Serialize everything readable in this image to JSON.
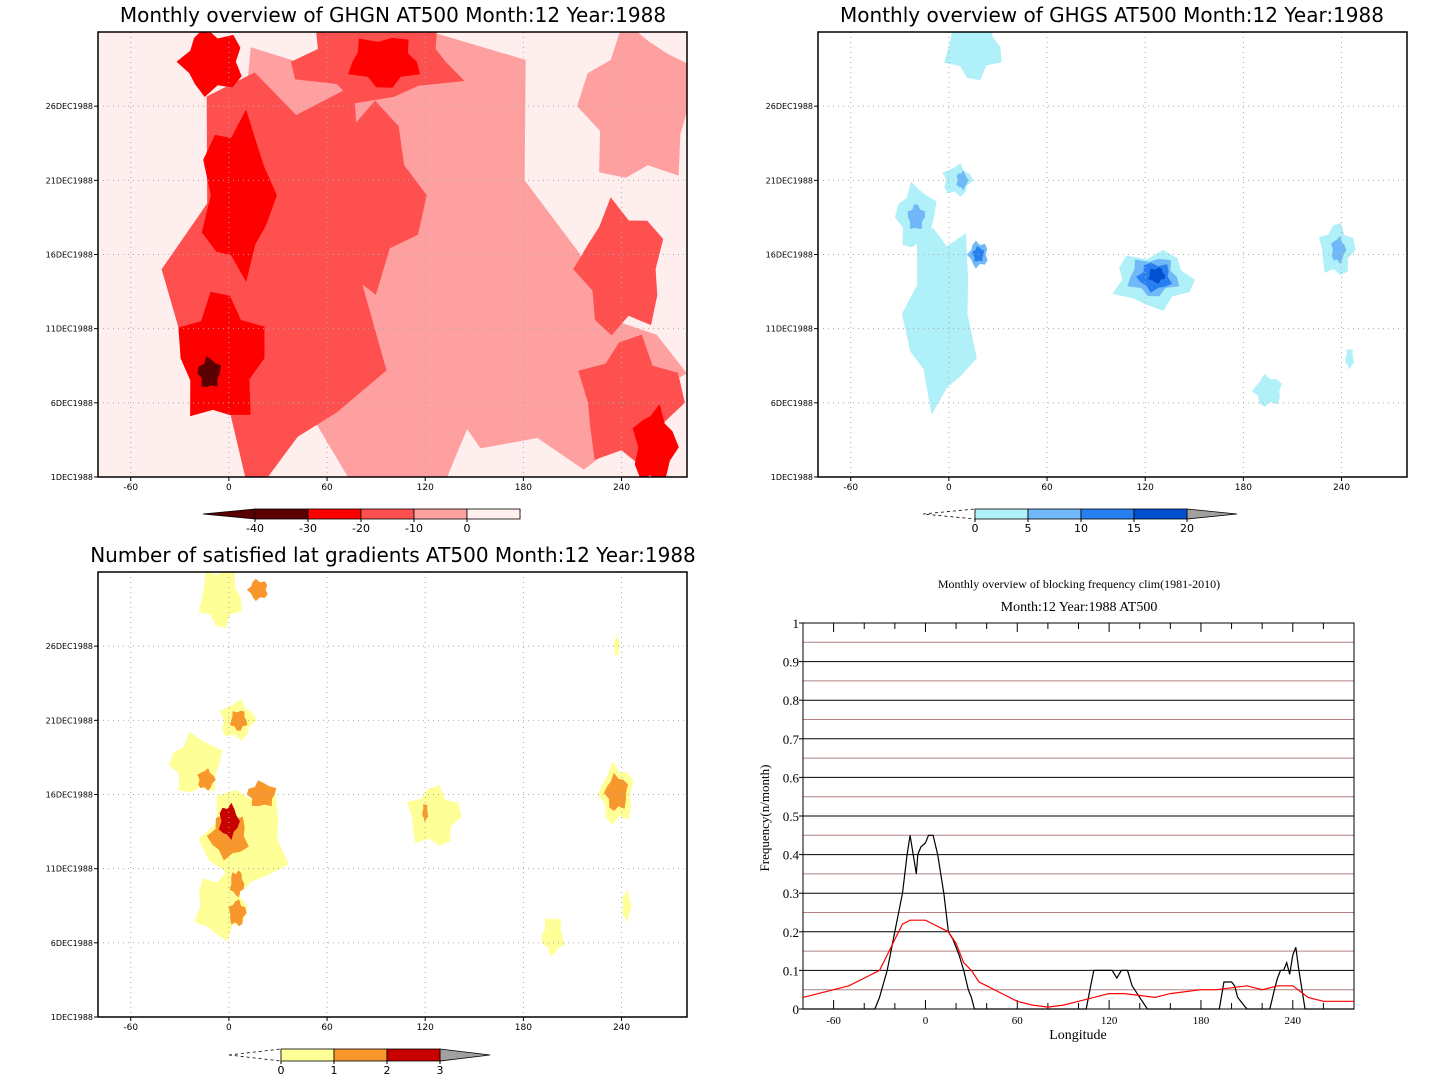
{
  "chart_data": [
    {
      "type": "heatmap",
      "title": "Monthly overview of GHGN AT500 Month:12 Year:1988",
      "x_ticks": [
        "-60",
        "0",
        "60",
        "120",
        "180",
        "240"
      ],
      "y_ticks": [
        "1DEC1988",
        "6DEC1988",
        "11DEC1988",
        "16DEC1988",
        "21DEC1988",
        "26DEC1988"
      ],
      "xlim": [
        -80,
        280
      ],
      "ylim": [
        1,
        31
      ],
      "grid": true,
      "colorbar": {
        "labels": [
          "-40",
          "-30",
          "-20",
          "-10",
          "0"
        ],
        "colors": [
          "#5a0000",
          "#ff0000",
          "#ff5050",
          "#ffa0a0",
          "#ffeeee"
        ],
        "extend_low_color": "#5a0000",
        "extend_high_color": "#ffffff"
      },
      "regions": [
        {
          "level": -10,
          "color": "#ffa0a0",
          "x": 100,
          "y": 16,
          "rx": 140,
          "ry": 18
        },
        {
          "level": -10,
          "color": "#ffa0a0",
          "x": 200,
          "y": 8,
          "rx": 80,
          "ry": 7
        },
        {
          "level": -10,
          "color": "#ffa0a0",
          "x": 250,
          "y": 26,
          "rx": 40,
          "ry": 6
        },
        {
          "level": -20,
          "color": "#ff5050",
          "x": 30,
          "y": 15,
          "rx": 75,
          "ry": 16
        },
        {
          "level": -20,
          "color": "#ff5050",
          "x": 80,
          "y": 20,
          "rx": 45,
          "ry": 7
        },
        {
          "level": -20,
          "color": "#ff5050",
          "x": 245,
          "y": 6,
          "rx": 35,
          "ry": 5
        },
        {
          "level": -20,
          "color": "#ff5050",
          "x": 240,
          "y": 15,
          "rx": 30,
          "ry": 5
        },
        {
          "level": -20,
          "color": "#ff5050",
          "x": 90,
          "y": 29,
          "rx": 60,
          "ry": 3
        },
        {
          "level": -30,
          "color": "#ff0000",
          "x": 5,
          "y": 20,
          "rx": 25,
          "ry": 6
        },
        {
          "level": -30,
          "color": "#ff0000",
          "x": -5,
          "y": 9,
          "rx": 30,
          "ry": 5
        },
        {
          "level": -30,
          "color": "#ff0000",
          "x": -10,
          "y": 29,
          "rx": 22,
          "ry": 2.5
        },
        {
          "level": -30,
          "color": "#ff0000",
          "x": 95,
          "y": 29,
          "rx": 25,
          "ry": 2
        },
        {
          "level": -30,
          "color": "#ff0000",
          "x": 260,
          "y": 3,
          "rx": 15,
          "ry": 3
        },
        {
          "level": -40,
          "color": "#5a0000",
          "x": -12,
          "y": 8,
          "rx": 8,
          "ry": 1.2
        }
      ]
    },
    {
      "type": "heatmap",
      "title": "Monthly overview of GHGS AT500 Month:12 Year:1988",
      "x_ticks": [
        "-60",
        "0",
        "60",
        "120",
        "180",
        "240"
      ],
      "y_ticks": [
        "1DEC1988",
        "6DEC1988",
        "11DEC1988",
        "16DEC1988",
        "21DEC1988",
        "26DEC1988"
      ],
      "xlim": [
        -80,
        280
      ],
      "ylim": [
        1,
        31
      ],
      "grid": true,
      "colorbar": {
        "labels": [
          "0",
          "5",
          "10",
          "15",
          "20"
        ],
        "colors": [
          "#b0f0f8",
          "#70b8f8",
          "#2880f0",
          "#0050d0"
        ],
        "extend_low_color": "#ffffff",
        "extend_high_color": "#a0a0a0"
      },
      "regions": [
        {
          "level": 0,
          "color": "#b0f0f8",
          "x": 15,
          "y": 30,
          "rx": 20,
          "ry": 2.5
        },
        {
          "level": 0,
          "color": "#b0f0f8",
          "x": 5,
          "y": 21,
          "rx": 10,
          "ry": 1.2
        },
        {
          "level": 0,
          "color": "#b0f0f8",
          "x": -20,
          "y": 18.5,
          "rx": 14,
          "ry": 2.5
        },
        {
          "level": 0,
          "color": "#b0f0f8",
          "x": -5,
          "y": 12,
          "rx": 25,
          "ry": 7
        },
        {
          "level": 0,
          "color": "#b0f0f8",
          "x": 125,
          "y": 14.3,
          "rx": 28,
          "ry": 2.2
        },
        {
          "level": 0,
          "color": "#b0f0f8",
          "x": 237,
          "y": 16.3,
          "rx": 12,
          "ry": 2
        },
        {
          "level": 0,
          "color": "#b0f0f8",
          "x": 195,
          "y": 6.8,
          "rx": 10,
          "ry": 1.2
        },
        {
          "level": 0,
          "color": "#b0f0f8",
          "x": 245,
          "y": 9,
          "rx": 3,
          "ry": 0.8
        },
        {
          "level": 5,
          "color": "#70b8f8",
          "x": 8,
          "y": 21,
          "rx": 4,
          "ry": 0.7
        },
        {
          "level": 5,
          "color": "#70b8f8",
          "x": -20,
          "y": 18.5,
          "rx": 6,
          "ry": 1
        },
        {
          "level": 5,
          "color": "#70b8f8",
          "x": 18,
          "y": 16,
          "rx": 7,
          "ry": 1
        },
        {
          "level": 5,
          "color": "#70b8f8",
          "x": 125,
          "y": 14.5,
          "rx": 18,
          "ry": 1.5
        },
        {
          "level": 5,
          "color": "#70b8f8",
          "x": 238,
          "y": 16.3,
          "rx": 5,
          "ry": 1
        },
        {
          "level": 10,
          "color": "#2880f0",
          "x": 18,
          "y": 16,
          "rx": 4,
          "ry": 0.6
        },
        {
          "level": 10,
          "color": "#2880f0",
          "x": 126,
          "y": 14.5,
          "rx": 12,
          "ry": 1.1
        },
        {
          "level": 15,
          "color": "#0050d0",
          "x": 127,
          "y": 14.6,
          "rx": 6,
          "ry": 0.6
        }
      ]
    },
    {
      "type": "heatmap",
      "title": "Number of satisfied lat gradients AT500 Month:12 Year:1988",
      "x_ticks": [
        "-60",
        "0",
        "60",
        "120",
        "180",
        "240"
      ],
      "y_ticks": [
        "1DEC1988",
        "6DEC1988",
        "11DEC1988",
        "16DEC1988",
        "21DEC1988",
        "26DEC1988"
      ],
      "xlim": [
        -80,
        280
      ],
      "ylim": [
        1,
        31
      ],
      "grid": true,
      "colorbar": {
        "labels": [
          "0",
          "1",
          "2",
          "3"
        ],
        "colors": [
          "#ffff98",
          "#f8982c",
          "#c80000"
        ],
        "extend_low_color": "#ffffff",
        "extend_high_color": "#a0a0a0"
      },
      "regions": [
        {
          "level": 0,
          "color": "#ffff98",
          "x": -5,
          "y": 29.3,
          "rx": 15,
          "ry": 2.3
        },
        {
          "level": 0,
          "color": "#ffff98",
          "x": 5,
          "y": 21,
          "rx": 12,
          "ry": 1.5
        },
        {
          "level": 0,
          "color": "#ffff98",
          "x": -20,
          "y": 18,
          "rx": 18,
          "ry": 2.3
        },
        {
          "level": 0,
          "color": "#ffff98",
          "x": 10,
          "y": 13,
          "rx": 30,
          "ry": 4
        },
        {
          "level": 0,
          "color": "#ffff98",
          "x": -5,
          "y": 8.5,
          "rx": 18,
          "ry": 2.5
        },
        {
          "level": 0,
          "color": "#ffff98",
          "x": 125,
          "y": 14.5,
          "rx": 18,
          "ry": 2.3
        },
        {
          "level": 0,
          "color": "#ffff98",
          "x": 237,
          "y": 16,
          "rx": 12,
          "ry": 2.3
        },
        {
          "level": 0,
          "color": "#ffff98",
          "x": 198,
          "y": 6.5,
          "rx": 8,
          "ry": 1.5
        },
        {
          "level": 0,
          "color": "#ffff98",
          "x": 243,
          "y": 8.5,
          "rx": 3,
          "ry": 1.2
        },
        {
          "level": 0,
          "color": "#ffff98",
          "x": 237,
          "y": 26,
          "rx": 2,
          "ry": 0.8
        },
        {
          "level": 1,
          "color": "#f8982c",
          "x": 18,
          "y": 29.8,
          "rx": 7,
          "ry": 0.8
        },
        {
          "level": 1,
          "color": "#f8982c",
          "x": 6,
          "y": 21,
          "rx": 6,
          "ry": 0.8
        },
        {
          "level": 1,
          "color": "#f8982c",
          "x": -14,
          "y": 17,
          "rx": 6,
          "ry": 0.8
        },
        {
          "level": 1,
          "color": "#f8982c",
          "x": 20,
          "y": 16,
          "rx": 10,
          "ry": 1
        },
        {
          "level": 1,
          "color": "#f8982c",
          "x": 0,
          "y": 13.2,
          "rx": 14,
          "ry": 1.7
        },
        {
          "level": 1,
          "color": "#f8982c",
          "x": 5,
          "y": 10,
          "rx": 5,
          "ry": 1
        },
        {
          "level": 1,
          "color": "#f8982c",
          "x": 5,
          "y": 8,
          "rx": 6,
          "ry": 1
        },
        {
          "level": 1,
          "color": "#f8982c",
          "x": 237,
          "y": 16.1,
          "rx": 8,
          "ry": 1.4
        },
        {
          "level": 1,
          "color": "#f8982c",
          "x": 120,
          "y": 14.8,
          "rx": 2,
          "ry": 0.7
        },
        {
          "level": 2,
          "color": "#c80000",
          "x": 0,
          "y": 14.2,
          "rx": 7,
          "ry": 1.3
        }
      ]
    },
    {
      "type": "line",
      "title": "Monthly overview of blocking frequency clim(1981-2010)",
      "subtitle": "Month:12 Year:1988  AT500",
      "xlabel": "Longitude",
      "ylabel": "Frequency(n/month)",
      "xlim": [
        -80,
        280
      ],
      "ylim": [
        0,
        1
      ],
      "x_ticks": [
        "-60",
        "0",
        "60",
        "120",
        "180",
        "240"
      ],
      "y_ticks": [
        "0",
        "0.1",
        "0.2",
        "0.3",
        "0.4",
        "0.5",
        "0.6",
        "0.7",
        "0.8",
        "0.9",
        "1"
      ],
      "grid": true,
      "series": [
        {
          "color": "#000000",
          "x": [
            -80,
            -40,
            -36,
            -33,
            -30,
            -25,
            -20,
            -15,
            -12,
            -10,
            -8,
            -6,
            -5,
            -3,
            0,
            2,
            5,
            8,
            12,
            15,
            18,
            22,
            25,
            28,
            30,
            32,
            35,
            100,
            105,
            108,
            110,
            118,
            120,
            122,
            125,
            128,
            130,
            132,
            135,
            140,
            145,
            150,
            190,
            192,
            195,
            198,
            200,
            202,
            204,
            206,
            208,
            210,
            225,
            228,
            230,
            232,
            234,
            236,
            238,
            240,
            242,
            244,
            246,
            248,
            280
          ],
          "y": [
            0,
            0,
            0,
            0,
            0.03,
            0.1,
            0.2,
            0.3,
            0.4,
            0.45,
            0.4,
            0.35,
            0.4,
            0.42,
            0.43,
            0.45,
            0.45,
            0.4,
            0.3,
            0.2,
            0.18,
            0.14,
            0.1,
            0.05,
            0.03,
            0,
            0,
            0,
            0,
            0.06,
            0.1,
            0.1,
            0.1,
            0.1,
            0.08,
            0.1,
            0.1,
            0.1,
            0.06,
            0.03,
            0,
            0,
            0,
            0,
            0.07,
            0.07,
            0.07,
            0.06,
            0.03,
            0.02,
            0.01,
            0,
            0,
            0.05,
            0.08,
            0.1,
            0.1,
            0.12,
            0.09,
            0.14,
            0.16,
            0.1,
            0.05,
            0,
            0
          ]
        },
        {
          "color": "#ff0000",
          "x": [
            -80,
            -70,
            -60,
            -50,
            -40,
            -30,
            -25,
            -20,
            -15,
            -10,
            -5,
            0,
            5,
            10,
            15,
            20,
            25,
            30,
            35,
            40,
            50,
            60,
            70,
            80,
            90,
            100,
            110,
            120,
            130,
            140,
            150,
            160,
            170,
            180,
            190,
            200,
            210,
            220,
            230,
            240,
            250,
            260,
            270,
            280
          ],
          "y": [
            0.03,
            0.04,
            0.05,
            0.06,
            0.08,
            0.1,
            0.14,
            0.18,
            0.22,
            0.23,
            0.23,
            0.23,
            0.22,
            0.21,
            0.2,
            0.17,
            0.12,
            0.1,
            0.07,
            0.06,
            0.04,
            0.02,
            0.01,
            0.005,
            0.01,
            0.02,
            0.03,
            0.04,
            0.04,
            0.035,
            0.03,
            0.04,
            0.045,
            0.05,
            0.05,
            0.055,
            0.06,
            0.05,
            0.06,
            0.06,
            0.03,
            0.02,
            0.02,
            0.02
          ]
        }
      ]
    }
  ]
}
